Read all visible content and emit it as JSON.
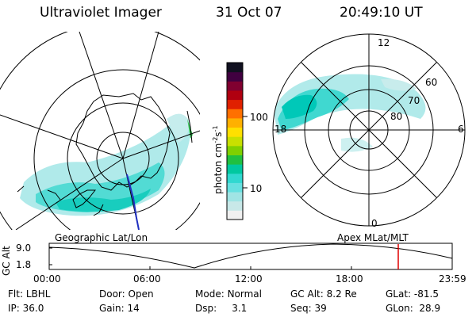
{
  "header": {
    "title": "Ultraviolet Imager",
    "date": "31 Oct 07",
    "time": "20:49:10 UT"
  },
  "colorbar": {
    "label": "photon cm",
    "exp_text": "-2",
    "s_text": "s",
    "exp2_text": "-1",
    "ticks": [
      "100",
      "10"
    ],
    "colors": [
      "#f0f0f0",
      "#c8e8e8",
      "#a0e4e4",
      "#66e0e0",
      "#30d8d0",
      "#00c8a0",
      "#20c040",
      "#80d000",
      "#c8e000",
      "#ffe000",
      "#ffb000",
      "#ff7000",
      "#e02000",
      "#b00010",
      "#800030",
      "#400040",
      "#101020"
    ]
  },
  "left_panel": {
    "label": "Geographic Lat/Lon"
  },
  "right_panel": {
    "label": "Apex MLat/MLT",
    "mlt_labels": {
      "top": "12",
      "bottom": "0",
      "left": "18",
      "right": "6"
    },
    "lat_labels": [
      "60",
      "70",
      "80"
    ]
  },
  "timeline": {
    "ylabel": "GC Alt",
    "yticks": [
      "9.0",
      "1.8"
    ],
    "xticks": [
      "00:00",
      "06:00",
      "12:00",
      "18:00",
      "23:59"
    ],
    "marker_color": "#e00000"
  },
  "status": {
    "row1": [
      {
        "label": "Flt:",
        "value": "LBHL"
      },
      {
        "label": "Door:",
        "value": "Open"
      },
      {
        "label": "Mode:",
        "value": "Normal"
      },
      {
        "label": "GC Alt:",
        "value": "8.2 Re"
      },
      {
        "label": "GLat:",
        "value": "-81.5"
      }
    ],
    "row2": [
      {
        "label": "IP:",
        "value": "36.0"
      },
      {
        "label": "Gain:",
        "value": "14"
      },
      {
        "label": "Dsp:",
        "value": "3.1"
      },
      {
        "label": "Seq:",
        "value": "39"
      },
      {
        "label": "GLon:",
        "value": "28.9"
      }
    ]
  }
}
